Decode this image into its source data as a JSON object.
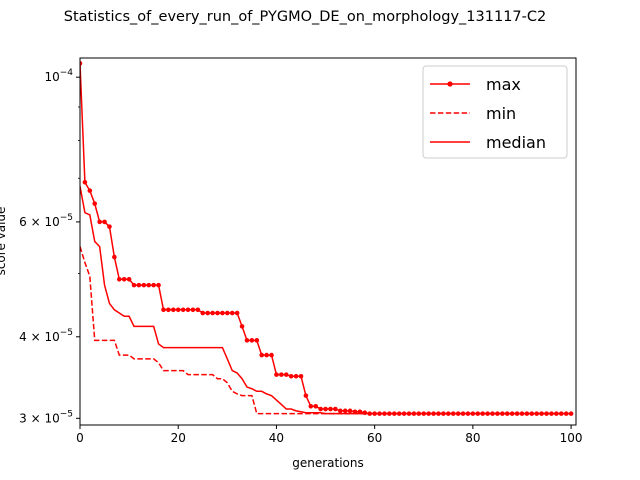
{
  "chart_data": {
    "type": "line",
    "title": "Statistics_of_every_run_of_PYGMO_DE_on_morphology_131117-C2",
    "xlabel": "generations",
    "ylabel": "score value",
    "xlim": [
      0,
      101
    ],
    "ylim": [
      2.93e-05,
      0.000107
    ],
    "yscale": "log",
    "grid": false,
    "legend_position": "top-right",
    "x_ticks": [
      0,
      20,
      40,
      60,
      80,
      100
    ],
    "y_ticks": [
      {
        "value": 3e-05,
        "label": "3 × 10^-5"
      },
      {
        "value": 4e-05,
        "label": "4 × 10^-5"
      },
      {
        "value": 6e-05,
        "label": "6 × 10^-5"
      },
      {
        "value": 0.0001,
        "label": "10^-4"
      }
    ],
    "y_minor_ticks": [
      5e-05,
      7e-05,
      8e-05,
      9e-05
    ],
    "series": [
      {
        "name": "max",
        "color": "#ff0000",
        "style": "solid",
        "marker": "dot",
        "values": [
          0.000105,
          6.9e-05,
          6.7e-05,
          6.4e-05,
          6e-05,
          6e-05,
          5.9e-05,
          5.3e-05,
          4.9e-05,
          4.9e-05,
          4.9e-05,
          4.8e-05,
          4.8e-05,
          4.8e-05,
          4.8e-05,
          4.8e-05,
          4.8e-05,
          4.4e-05,
          4.4e-05,
          4.4e-05,
          4.4e-05,
          4.4e-05,
          4.4e-05,
          4.4e-05,
          4.4e-05,
          4.35e-05,
          4.35e-05,
          4.35e-05,
          4.35e-05,
          4.35e-05,
          4.35e-05,
          4.35e-05,
          4.35e-05,
          4.15e-05,
          3.95e-05,
          3.95e-05,
          3.95e-05,
          3.75e-05,
          3.75e-05,
          3.75e-05,
          3.5e-05,
          3.5e-05,
          3.5e-05,
          3.48e-05,
          3.48e-05,
          3.48e-05,
          3.25e-05,
          3.13e-05,
          3.13e-05,
          3.1e-05,
          3.1e-05,
          3.1e-05,
          3.1e-05,
          3.08e-05,
          3.08e-05,
          3.08e-05,
          3.07e-05,
          3.07e-05,
          3.06e-05,
          3.05e-05,
          3.05e-05,
          3.05e-05,
          3.05e-05,
          3.05e-05,
          3.05e-05,
          3.05e-05,
          3.05e-05,
          3.05e-05,
          3.05e-05,
          3.05e-05,
          3.05e-05,
          3.05e-05,
          3.05e-05,
          3.05e-05,
          3.05e-05,
          3.05e-05,
          3.05e-05,
          3.05e-05,
          3.05e-05,
          3.05e-05,
          3.05e-05,
          3.05e-05,
          3.05e-05,
          3.05e-05,
          3.05e-05,
          3.05e-05,
          3.05e-05,
          3.05e-05,
          3.05e-05,
          3.05e-05,
          3.05e-05,
          3.05e-05,
          3.05e-05,
          3.05e-05,
          3.05e-05,
          3.05e-05,
          3.05e-05,
          3.05e-05,
          3.05e-05,
          3.05e-05,
          3.05e-05
        ]
      },
      {
        "name": "min",
        "color": "#ff0000",
        "style": "dashed",
        "marker": "none",
        "values": [
          5.5e-05,
          5.2e-05,
          4.95e-05,
          3.95e-05,
          3.95e-05,
          3.95e-05,
          3.95e-05,
          3.95e-05,
          3.75e-05,
          3.75e-05,
          3.75e-05,
          3.7e-05,
          3.7e-05,
          3.7e-05,
          3.7e-05,
          3.7e-05,
          3.65e-05,
          3.55e-05,
          3.55e-05,
          3.55e-05,
          3.55e-05,
          3.55e-05,
          3.5e-05,
          3.5e-05,
          3.5e-05,
          3.5e-05,
          3.5e-05,
          3.5e-05,
          3.45e-05,
          3.45e-05,
          3.4e-05,
          3.3e-05,
          3.27e-05,
          3.25e-05,
          3.25e-05,
          3.25e-05,
          3.05e-05,
          3.05e-05,
          3.05e-05,
          3.05e-05,
          3.05e-05,
          3.05e-05,
          3.05e-05,
          3.05e-05,
          3.05e-05,
          3.05e-05,
          3.05e-05,
          3.05e-05,
          3.05e-05,
          3.05e-05,
          3.05e-05,
          3.05e-05,
          3.05e-05,
          3.05e-05,
          3.05e-05,
          3.05e-05,
          3.05e-05,
          3.05e-05,
          3.05e-05,
          3.05e-05,
          3.05e-05,
          3.05e-05,
          3.05e-05,
          3.05e-05,
          3.05e-05,
          3.05e-05,
          3.05e-05,
          3.05e-05,
          3.05e-05,
          3.05e-05,
          3.05e-05,
          3.05e-05,
          3.05e-05,
          3.05e-05,
          3.05e-05,
          3.05e-05,
          3.05e-05,
          3.05e-05,
          3.05e-05,
          3.05e-05,
          3.05e-05,
          3.05e-05,
          3.05e-05,
          3.05e-05,
          3.05e-05,
          3.05e-05,
          3.05e-05,
          3.05e-05,
          3.05e-05,
          3.05e-05,
          3.05e-05,
          3.05e-05,
          3.05e-05,
          3.05e-05,
          3.05e-05,
          3.05e-05,
          3.05e-05,
          3.05e-05,
          3.05e-05,
          3.05e-05,
          3.05e-05
        ]
      },
      {
        "name": "median",
        "color": "#ff0000",
        "style": "solid",
        "marker": "none",
        "values": [
          6.8e-05,
          6.2e-05,
          6.15e-05,
          5.6e-05,
          5.5e-05,
          4.8e-05,
          4.5e-05,
          4.4e-05,
          4.35e-05,
          4.3e-05,
          4.3e-05,
          4.15e-05,
          4.15e-05,
          4.15e-05,
          4.15e-05,
          4.15e-05,
          3.9e-05,
          3.85e-05,
          3.85e-05,
          3.85e-05,
          3.85e-05,
          3.85e-05,
          3.85e-05,
          3.85e-05,
          3.85e-05,
          3.85e-05,
          3.85e-05,
          3.85e-05,
          3.85e-05,
          3.85e-05,
          3.7e-05,
          3.55e-05,
          3.52e-05,
          3.45e-05,
          3.35e-05,
          3.33e-05,
          3.3e-05,
          3.3e-05,
          3.27e-05,
          3.25e-05,
          3.2e-05,
          3.15e-05,
          3.1e-05,
          3.1e-05,
          3.08e-05,
          3.07e-05,
          3.06e-05,
          3.06e-05,
          3.06e-05,
          3.06e-05,
          3.05e-05,
          3.05e-05,
          3.05e-05,
          3.05e-05,
          3.05e-05,
          3.05e-05,
          3.05e-05,
          3.05e-05,
          3.05e-05,
          3.05e-05,
          3.05e-05,
          3.05e-05,
          3.05e-05,
          3.05e-05,
          3.05e-05,
          3.05e-05,
          3.05e-05,
          3.05e-05,
          3.05e-05,
          3.05e-05,
          3.05e-05,
          3.05e-05,
          3.05e-05,
          3.05e-05,
          3.05e-05,
          3.05e-05,
          3.05e-05,
          3.05e-05,
          3.05e-05,
          3.05e-05,
          3.05e-05,
          3.05e-05,
          3.05e-05,
          3.05e-05,
          3.05e-05,
          3.05e-05,
          3.05e-05,
          3.05e-05,
          3.05e-05,
          3.05e-05,
          3.05e-05,
          3.05e-05,
          3.05e-05,
          3.05e-05,
          3.05e-05,
          3.05e-05,
          3.05e-05,
          3.05e-05,
          3.05e-05,
          3.05e-05,
          3.05e-05
        ]
      }
    ]
  }
}
